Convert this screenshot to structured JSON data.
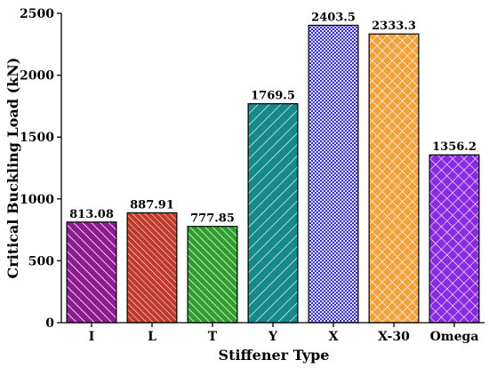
{
  "chart_data": {
    "type": "bar",
    "xlabel": "Stiffener Type",
    "ylabel": "Critical Buckling Load (kN)",
    "ylim": [
      0,
      2500
    ],
    "yticks": [
      0,
      500,
      1000,
      1500,
      2000,
      2500
    ],
    "grid": false,
    "categories": [
      "I",
      "L",
      "T",
      "Y",
      "X",
      "X-30",
      "Omega"
    ],
    "values": [
      813.08,
      887.91,
      777.85,
      1769.5,
      2403.5,
      2333.3,
      1356.2
    ],
    "value_labels": [
      "813.08",
      "887.91",
      "777.85",
      "1769.5",
      "2403.5",
      "2333.3",
      "1356.2"
    ],
    "bars": [
      {
        "color": "#8e1c8e",
        "pattern": "diagonal-hatch"
      },
      {
        "color": "#c0392b",
        "pattern": "diagonal-hatch"
      },
      {
        "color": "#2e9e2e",
        "pattern": "diagonal-hatch"
      },
      {
        "color": "#168a8a",
        "pattern": "wide-diagonal-hatch"
      },
      {
        "color": "#3b35c4",
        "pattern": "dense-checker"
      },
      {
        "color": "#f2a23a",
        "pattern": "crosshatch"
      },
      {
        "color": "#8a2be2",
        "pattern": "crosshatch"
      }
    ]
  }
}
